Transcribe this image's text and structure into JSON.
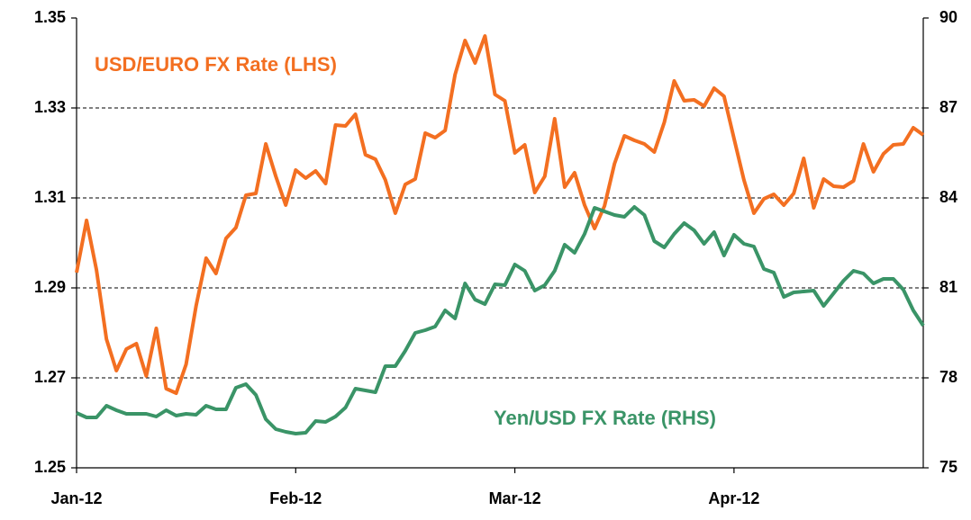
{
  "chart_data": {
    "type": "line",
    "categories": [
      "Jan-12",
      null,
      null,
      null,
      null,
      null,
      null,
      null,
      null,
      null,
      null,
      null,
      null,
      null,
      null,
      null,
      null,
      null,
      null,
      null,
      null,
      null,
      "Feb-12",
      null,
      null,
      null,
      null,
      null,
      null,
      null,
      null,
      null,
      null,
      null,
      null,
      null,
      null,
      null,
      null,
      null,
      null,
      null,
      null,
      null,
      "Mar-12",
      null,
      null,
      null,
      null,
      null,
      null,
      null,
      null,
      null,
      null,
      null,
      null,
      null,
      null,
      null,
      null,
      null,
      null,
      null,
      null,
      null,
      "Apr-12",
      null,
      null,
      null,
      null,
      null,
      null,
      null,
      null,
      null,
      null,
      null,
      null,
      null,
      null,
      null,
      null,
      null,
      null,
      null
    ],
    "series": [
      {
        "name": "USD/EURO FX Rate (LHS)",
        "color": "#f36f21",
        "axis": "y",
        "values": [
          1.2934,
          1.305,
          1.294,
          1.2786,
          1.2716,
          1.2764,
          1.2776,
          1.2704,
          1.281,
          1.2676,
          1.2666,
          1.273,
          1.286,
          1.2966,
          1.2932,
          1.301,
          1.3034,
          1.3106,
          1.311,
          1.322,
          1.3148,
          1.3084,
          1.3162,
          1.3144,
          1.316,
          1.3132,
          1.3262,
          1.326,
          1.3286,
          1.3196,
          1.3186,
          1.314,
          1.3066,
          1.313,
          1.3142,
          1.3244,
          1.3234,
          1.325,
          1.3374,
          1.345,
          1.34,
          1.346,
          1.333,
          1.3316,
          1.32,
          1.3218,
          1.3112,
          1.3148,
          1.3276,
          1.3124,
          1.3156,
          1.3084,
          1.3032,
          1.3082,
          1.3176,
          1.3238,
          1.3228,
          1.322,
          1.3202,
          1.3268,
          1.336,
          1.3316,
          1.3318,
          1.3304,
          1.3344,
          1.3326,
          1.3232,
          1.314,
          1.3066,
          1.3098,
          1.3108,
          1.3084,
          1.311,
          1.3188,
          1.3078,
          1.3142,
          1.3126,
          1.3124,
          1.3138,
          1.322,
          1.3158,
          1.3198,
          1.3218,
          1.322,
          1.3256,
          1.324
        ]
      },
      {
        "name": "Yen/USD FX Rate (RHS)",
        "color": "#3a9467",
        "axis": "y2",
        "values": [
          76.83,
          76.68,
          76.68,
          77.07,
          76.92,
          76.8,
          76.8,
          76.8,
          76.71,
          76.92,
          76.74,
          76.8,
          76.77,
          77.07,
          76.95,
          76.95,
          77.67,
          77.79,
          77.43,
          76.62,
          76.29,
          76.2,
          76.14,
          76.17,
          76.56,
          76.53,
          76.71,
          77.01,
          77.64,
          77.58,
          77.52,
          78.39,
          78.39,
          78.9,
          79.5,
          79.59,
          79.71,
          80.25,
          79.98,
          81.15,
          80.61,
          80.46,
          81.12,
          81.09,
          81.78,
          81.57,
          80.91,
          81.09,
          81.57,
          82.44,
          82.17,
          82.8,
          83.67,
          83.55,
          83.43,
          83.37,
          83.7,
          83.43,
          82.56,
          82.35,
          82.8,
          83.16,
          82.92,
          82.47,
          82.86,
          82.08,
          82.77,
          82.47,
          82.38,
          81.63,
          81.51,
          80.7,
          80.85,
          80.88,
          80.91,
          80.4,
          80.82,
          81.24,
          81.57,
          81.48,
          81.15,
          81.3,
          81.3,
          80.94,
          80.25,
          79.74
        ]
      }
    ],
    "ylim": [
      1.25,
      1.35
    ],
    "yticks": [
      1.25,
      1.27,
      1.29,
      1.31,
      1.33,
      1.35
    ],
    "y2lim": [
      75,
      90
    ],
    "y2ticks": [
      75,
      78,
      81,
      84,
      87,
      90
    ],
    "grid": true
  }
}
